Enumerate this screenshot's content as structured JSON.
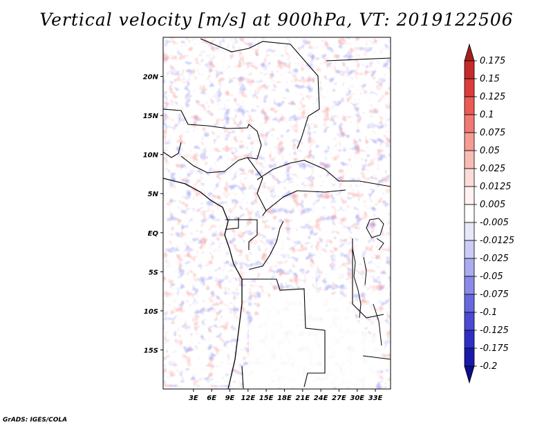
{
  "title": "Vertical velocity [m/s] at 900hPa, VT: 2019122506",
  "credit": "GrADS: IGES/COLA",
  "map": {
    "lon_range": [
      -2,
      35.5
    ],
    "lat_range": [
      -20,
      25
    ],
    "x_ticks": [
      "3E",
      "6E",
      "9E",
      "12E",
      "15E",
      "18E",
      "21E",
      "24E",
      "27E",
      "30E",
      "33E"
    ],
    "x_tick_values": [
      3,
      6,
      9,
      12,
      15,
      18,
      21,
      24,
      27,
      30,
      33
    ],
    "y_ticks": [
      "20N",
      "15N",
      "10N",
      "5N",
      "EQ",
      "5S",
      "10S",
      "15S"
    ],
    "y_tick_values": [
      20,
      15,
      10,
      5,
      0,
      -5,
      -10,
      -15
    ]
  },
  "colorbar": {
    "labels": [
      "0.175",
      "0.15",
      "0.125",
      "0.1",
      "0.075",
      "0.05",
      "0.025",
      "0.0125",
      "0.005",
      "-0.005",
      "-0.0125",
      "-0.025",
      "-0.05",
      "-0.075",
      "-0.1",
      "-0.125",
      "-0.175",
      "-0.2"
    ],
    "colors": [
      "#a51e1e",
      "#c62a2a",
      "#dd3c3c",
      "#ec5a55",
      "#f07a73",
      "#f69c94",
      "#f9bcb5",
      "#fcdcd8",
      "#fff2f0",
      "#ffffff",
      "#e8e8fb",
      "#ccccf6",
      "#ababf0",
      "#8a8ae8",
      "#6868de",
      "#4a4ad4",
      "#2e2ec6",
      "#1a1aa8",
      "#0c0c8c"
    ]
  }
}
